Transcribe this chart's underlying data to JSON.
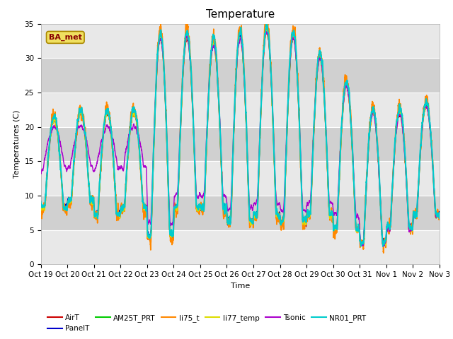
{
  "title": "Temperature",
  "xlabel": "Time",
  "ylabel": "Temperatures (C)",
  "ylim": [
    0,
    35
  ],
  "xlim": [
    0,
    15
  ],
  "xtick_labels": [
    "Oct 19",
    "Oct 20",
    "Oct 21",
    "Oct 22",
    "Oct 23",
    "Oct 24",
    "Oct 25",
    "Oct 26",
    "Oct 27",
    "Oct 28",
    "Oct 29",
    "Oct 30",
    "Oct 31",
    "Nov 1",
    "Nov 2",
    "Nov 3"
  ],
  "annotation_text": "BA_met",
  "series": [
    {
      "name": "AirT",
      "color": "#cc0000",
      "lw": 1.0
    },
    {
      "name": "PanelT",
      "color": "#0000cc",
      "lw": 1.0
    },
    {
      "name": "AM25T_PRT",
      "color": "#00cc00",
      "lw": 1.0
    },
    {
      "name": "li75_t",
      "color": "#ff8800",
      "lw": 1.2
    },
    {
      "name": "li77_temp",
      "color": "#dddd00",
      "lw": 1.0
    },
    {
      "name": "Tsonic",
      "color": "#aa00cc",
      "lw": 1.0
    },
    {
      "name": "NR01_PRT",
      "color": "#00cccc",
      "lw": 1.5
    }
  ],
  "fig_facecolor": "#ffffff",
  "plot_bg_light": "#e8e8e8",
  "plot_bg_dark": "#d0d0d0",
  "yticks": [
    0,
    5,
    10,
    15,
    20,
    25,
    30,
    35
  ],
  "title_fontsize": 11,
  "label_fontsize": 8,
  "tick_fontsize": 7.5
}
